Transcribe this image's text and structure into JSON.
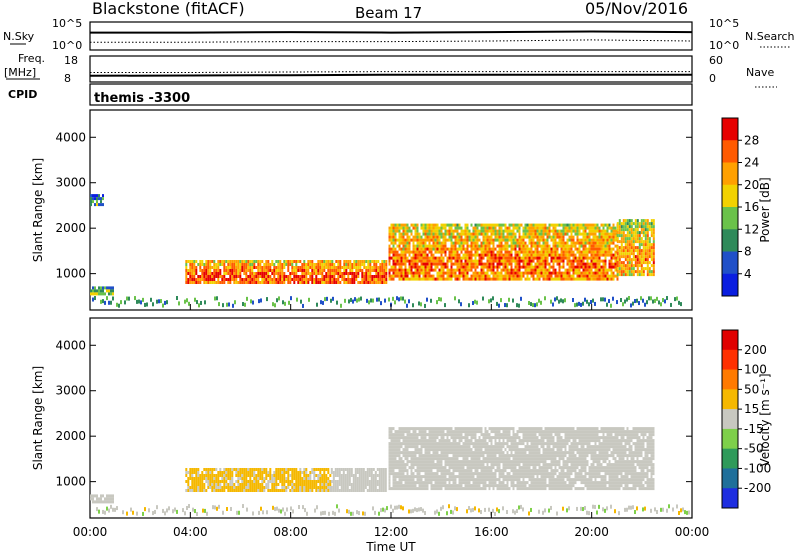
{
  "header": {
    "station": "Blackstone (fitACF)",
    "beam": "Beam 17",
    "date": "05/Nov/2016"
  },
  "side_labels": {
    "nsky": "N.Sky",
    "nsearch": "N.Search",
    "freq_1": "Freq.",
    "freq_2": "[MHz]",
    "nave": "Nave",
    "cpid": "CPID"
  },
  "strip_ticks": {
    "noise_left_top": "10^5",
    "noise_left_bottom": "10^0",
    "noise_right_top": "10^5",
    "noise_right_bottom": "10^0",
    "freq_top": "18",
    "freq_bottom": "8",
    "nave_top": "60",
    "nave_bottom": "0"
  },
  "program": "themis -3300",
  "x_axis": {
    "label": "Time UT",
    "ticks": [
      "00:00",
      "04:00",
      "08:00",
      "12:00",
      "16:00",
      "20:00",
      "00:00"
    ]
  },
  "y_axis": {
    "label": "Slant Range [km]",
    "ticks": [
      "1000",
      "2000",
      "3000",
      "4000"
    ]
  },
  "colorbars": {
    "power": {
      "label": "Power [dB]",
      "ticks": [
        "4",
        "8",
        "12",
        "16",
        "20",
        "24",
        "28"
      ],
      "colors": [
        "#0a1ee0",
        "#2050c8",
        "#2f8a5a",
        "#6ac24a",
        "#f2d200",
        "#ffa000",
        "#ff5a00",
        "#e60000"
      ]
    },
    "velocity": {
      "label": "Velocity [m s⁻¹]",
      "ticks": [
        "200",
        "100",
        "50",
        "15",
        "-15",
        "-50",
        "-100",
        "-200"
      ],
      "colors": [
        "#1e2ee0",
        "#1f6f9a",
        "#2f9a5a",
        "#7ed04a",
        "#c8c8c0",
        "#f5b800",
        "#ff7a00",
        "#ff3000",
        "#e00000"
      ]
    }
  },
  "chart_data": [
    {
      "type": "line",
      "title": "N.Sky / N.Search",
      "x": [
        "00:00",
        "04:00",
        "08:00",
        "12:00",
        "16:00",
        "20:00",
        "24:00"
      ],
      "series": [
        {
          "name": "N.Sky",
          "values": [
            3.1,
            3.1,
            3.2,
            3.1,
            3.2,
            3.3,
            3.2
          ]
        },
        {
          "name": "N.Search",
          "values": [
            1.4,
            1.4,
            1.5,
            1.5,
            1.6,
            1.8,
            1.6
          ]
        }
      ],
      "ylim": [
        0,
        5
      ]
    },
    {
      "type": "line",
      "title": "Freq. / Nave",
      "x": [
        "00:00",
        "04:00",
        "08:00",
        "12:00",
        "16:00",
        "20:00",
        "24:00"
      ],
      "series": [
        {
          "name": "Freq.",
          "values": [
            10.4,
            10.5,
            10.6,
            10.8,
            10.8,
            10.8,
            10.8
          ]
        },
        {
          "name": "Nave",
          "values": [
            22,
            22,
            23,
            24,
            24,
            24,
            24
          ]
        }
      ],
      "ylim": [
        8,
        18
      ]
    },
    {
      "type": "heatmap",
      "title": "Power [dB]",
      "xlabel": "Time UT",
      "ylabel": "Slant Range [km]",
      "xlim": [
        0,
        24
      ],
      "ylim": [
        200,
        4600
      ],
      "colorbar_range": [
        0,
        30
      ],
      "regions": [
        {
          "t": [
            0.0,
            0.9
          ],
          "range": [
            550,
            720
          ],
          "value": 9
        },
        {
          "t": [
            0.0,
            0.5
          ],
          "range": [
            2500,
            2750
          ],
          "value": 6
        },
        {
          "t": [
            3.8,
            11.8
          ],
          "range": [
            800,
            1300
          ],
          "value": 20
        },
        {
          "t": [
            11.9,
            21.0
          ],
          "range": [
            850,
            2100
          ],
          "value": 18
        },
        {
          "t": [
            21.0,
            22.5
          ],
          "range": [
            1000,
            2200
          ],
          "value": 16
        }
      ]
    },
    {
      "type": "heatmap",
      "title": "Velocity [m s^-1]",
      "xlabel": "Time UT",
      "ylabel": "Slant Range [km]",
      "xlim": [
        0,
        24
      ],
      "ylim": [
        200,
        4600
      ],
      "colorbar_range": [
        -200,
        200
      ],
      "regions": [
        {
          "t": [
            0.0,
            0.9
          ],
          "range": [
            550,
            720
          ],
          "value": 0
        },
        {
          "t": [
            3.8,
            9.6
          ],
          "range": [
            800,
            1300
          ],
          "value": -30
        },
        {
          "t": [
            9.6,
            11.8
          ],
          "range": [
            800,
            1300
          ],
          "value": -5
        },
        {
          "t": [
            11.9,
            22.5
          ],
          "range": [
            850,
            2200
          ],
          "value": 0
        }
      ]
    }
  ]
}
